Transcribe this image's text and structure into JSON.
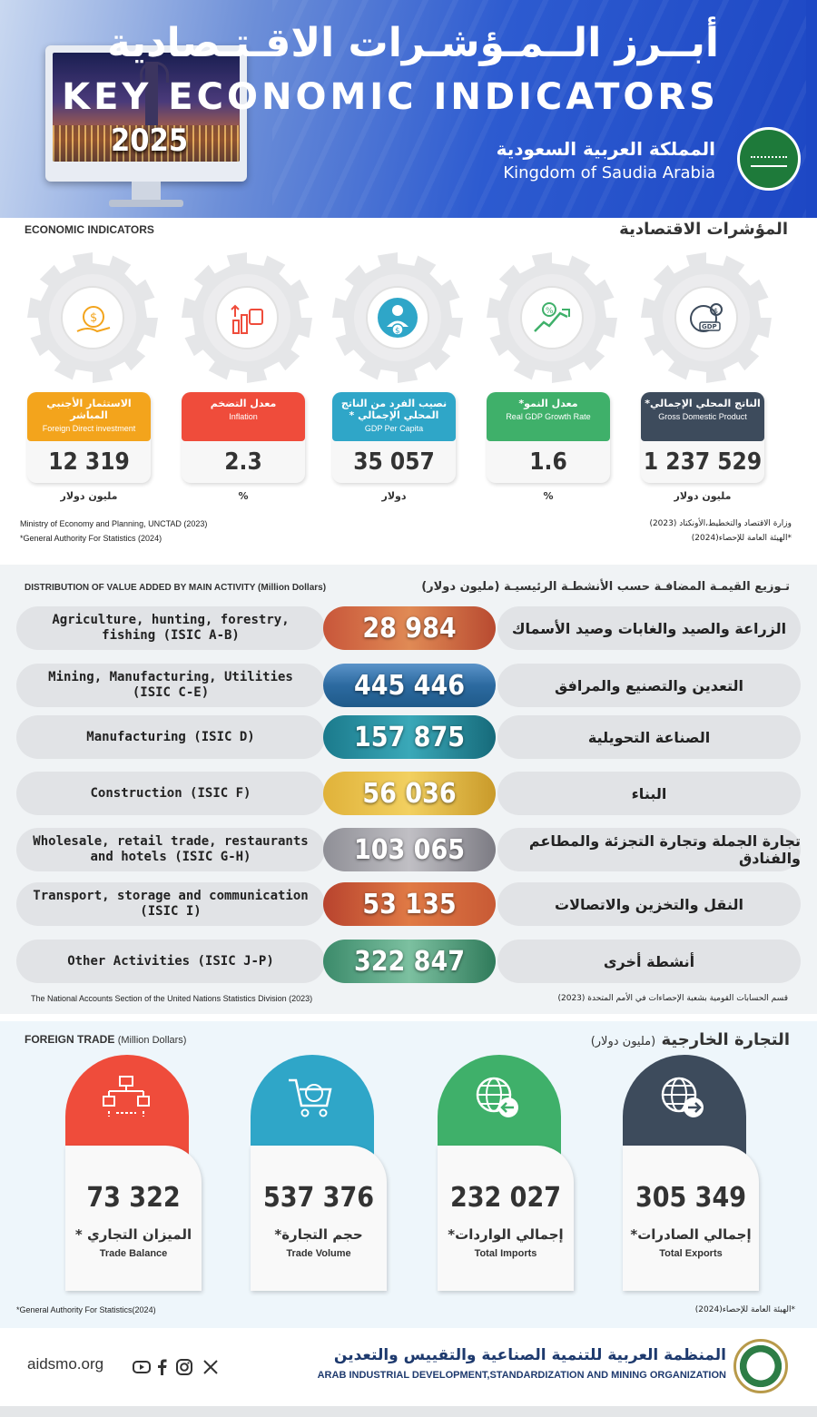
{
  "header": {
    "year": "2025",
    "title_ar": "أبــرز الــمـؤشـرات الاقـتـصادية",
    "title_en": "KEY ECONOMIC INDICATORS",
    "country_ar": "المملكة العربية السعودية",
    "country_en": "Kingdom of Saudia Arabia"
  },
  "economic": {
    "heading_en": "ECONOMIC INDICATORS",
    "heading_ar": "المؤشرات الاقتصادية",
    "cards": [
      {
        "label_ar": "الاستثمار الأجنبي المباشر",
        "label_en": "Foreign Direct investment",
        "value": "12 319",
        "unit": "مليون دولار",
        "color": "#f3a41c",
        "icon": "money-globe-hand-icon"
      },
      {
        "label_ar": "معدل التضخم",
        "label_en": "Inflation",
        "value": "2.3",
        "unit": "%",
        "color": "#ef4c3b",
        "icon": "inflation-chart-icon"
      },
      {
        "label_ar": "نصيب الفرد من الناتج المحلي الإجمالي *",
        "label_en": "GDP Per Capita",
        "value": "35 057",
        "unit": "دولار",
        "color": "#2fa6c8",
        "icon": "person-money-icon"
      },
      {
        "label_ar": "معدل النمو*",
        "label_en": "Real GDP Growth Rate",
        "value": "1.6",
        "unit": "%",
        "color": "#3fb06a",
        "icon": "growth-chart-icon"
      },
      {
        "label_ar": "الناتج المحلي الإجمالي*",
        "label_en": "Gross Domestic Product",
        "value": "1 237 529",
        "unit": "مليون دولار",
        "color": "#3d4b5c",
        "icon": "gdp-globe-icon"
      }
    ],
    "source_en_1": "Ministry of Economy and Planning, UNCTAD (2023)",
    "source_en_2": "*General Authority For Statistics (2024)",
    "source_ar_1": "وزارة الاقتصاد والتخطيط،الأونكتاد (2023)",
    "source_ar_2": "*الهيئة العامة للإحصاء(2024)"
  },
  "value_added": {
    "heading_en": "DISTRIBUTION OF VALUE ADDED BY MAIN ACTIVITY (Million Dollars)",
    "heading_ar": "تـوزيع القيمـة المضافـة حسب الأنشطـة الرئيسيـة (مليون دولار)",
    "rows": [
      {
        "en": "Agriculture, hunting, forestry, fishing (ISIC A-B)",
        "value": "28 984",
        "ar": "الزراعة والصيد والغابات وصيد الأسماك",
        "bg": "linear-gradient(90deg,#c8563a,#e08a55,#b84a30)"
      },
      {
        "en": "Mining, Manufacturing, Utilities (ISIC C-E)",
        "value": "445 446",
        "ar": "التعدين والتصنيع والمرافق",
        "bg": "linear-gradient(180deg,#5b93c9,#2c6aa0,#1f5a8a)"
      },
      {
        "en": "Manufacturing (ISIC D)",
        "value": "157 875",
        "ar": "الصناعة التحويلية",
        "bg": "linear-gradient(90deg,#1b7a8c,#3aa8b8,#166a7a)"
      },
      {
        "en": "Construction (ISIC F)",
        "value": "56 036",
        "ar": "البناء",
        "bg": "linear-gradient(90deg,#e0b23a,#f2d060,#c99a2a)"
      },
      {
        "en": "Wholesale, retail trade, restaurants and hotels (ISIC G-H)",
        "value": "103 065",
        "ar": "تجارة الجملة وتجارة التجزئة والمطاعم والفنادق",
        "bg": "linear-gradient(90deg,#8f8f96,#c0bfc4,#7c7b83)"
      },
      {
        "en": "Transport, storage and communication (ISIC I)",
        "value": "53 135",
        "ar": "النقل والتخزين والاتصالات",
        "bg": "linear-gradient(90deg,#b8432e,#e07a45,#c85a35)"
      },
      {
        "en": "Other Activities (ISIC J-P)",
        "value": "322 847",
        "ar": "أنشطة أخرى",
        "bg": "linear-gradient(90deg,#3b8a6a,#7cc0a0,#2f7a5a)"
      }
    ],
    "source_en": "The National Accounts Section of the United Nations Statistics Division (2023)",
    "source_ar": "قسم الحسابات القومية بشعبة الإحصاءات في الأمم المتحدة (2023)"
  },
  "trade": {
    "heading_en": "FOREIGN TRADE",
    "heading_en_unit": "(Million Dollars)",
    "heading_ar": "التجارة الخارجية",
    "heading_ar_unit": "(مليون دولار)",
    "cards": [
      {
        "value": "73 322",
        "ar": "الميزان التجاري *",
        "en": "Trade Balance",
        "color": "#ef4c3b",
        "icon": "trade-network-icon"
      },
      {
        "value": "537 376",
        "ar": "حجم التجارة*",
        "en": "Trade Volume",
        "color": "#2fa6c8",
        "icon": "globe-cart-icon"
      },
      {
        "value": "232 027",
        "ar": "إجمالي الواردات*",
        "en": "Total Imports",
        "color": "#3fb06a",
        "icon": "globe-arrow-in-icon"
      },
      {
        "value": "305 349",
        "ar": "إجمالي الصادرات*",
        "en": "Total Exports",
        "color": "#3d4b5c",
        "icon": "globe-arrow-out-icon"
      }
    ],
    "source_en": "*General Authority For Statistics(2024)",
    "source_ar": "*الهيئة العامة للإحصاء(2024)"
  },
  "footer": {
    "site": "aidsmo.org",
    "org_ar": "المنظمة العربية للتنمية الصناعية والتقييس والتعدين",
    "org_en": "ARAB INDUSTRIAL DEVELOPMENT,STANDARDIZATION AND MINING ORGANIZATION",
    "social": [
      "youtube-icon",
      "facebook-icon",
      "instagram-icon",
      "x-icon"
    ]
  }
}
